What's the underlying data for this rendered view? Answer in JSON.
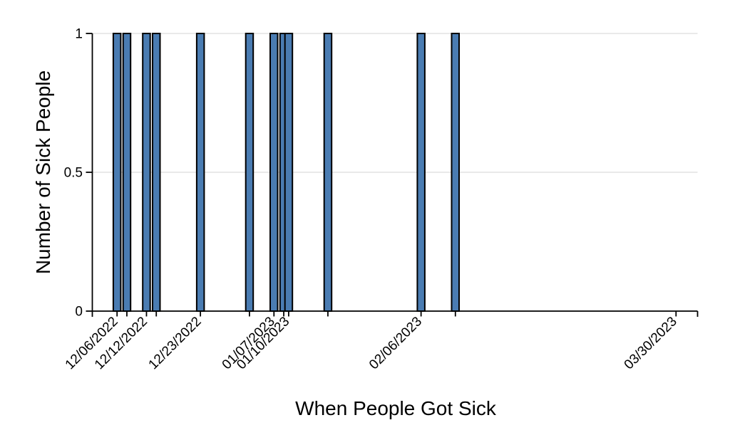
{
  "chart_data": {
    "type": "bar",
    "title": "",
    "xlabel": "When People Got Sick",
    "ylabel": "Number of Sick People",
    "x": [
      "12/06/2022",
      "12/08/2022",
      "12/12/2022",
      "12/14/2022",
      "12/23/2022",
      "01/02/2023",
      "01/07/2023",
      "01/09/2023",
      "01/10/2023",
      "01/18/2023",
      "02/06/2023",
      "02/13/2023"
    ],
    "values": [
      1,
      1,
      1,
      1,
      1,
      1,
      1,
      1,
      1,
      1,
      1,
      1
    ],
    "labeled_x_ticks": [
      "12/06/2022",
      "12/12/2022",
      "12/23/2022",
      "01/07/2023",
      "01/10/2023",
      "02/06/2023",
      "03/30/2023"
    ],
    "y_ticks": [
      {
        "value": 0,
        "label": "0"
      },
      {
        "value": 0.5,
        "label": "0.5"
      },
      {
        "value": 1,
        "label": "1"
      }
    ],
    "ylim": [
      0,
      1
    ],
    "grid": "horizontal",
    "legend": "none",
    "colors": {
      "bar_fill": "#4a7cb2",
      "bar_stroke": "#000000",
      "grid": "#e9e9e9",
      "axis": "#000000",
      "text": "#000000",
      "background": "#ffffff"
    }
  }
}
